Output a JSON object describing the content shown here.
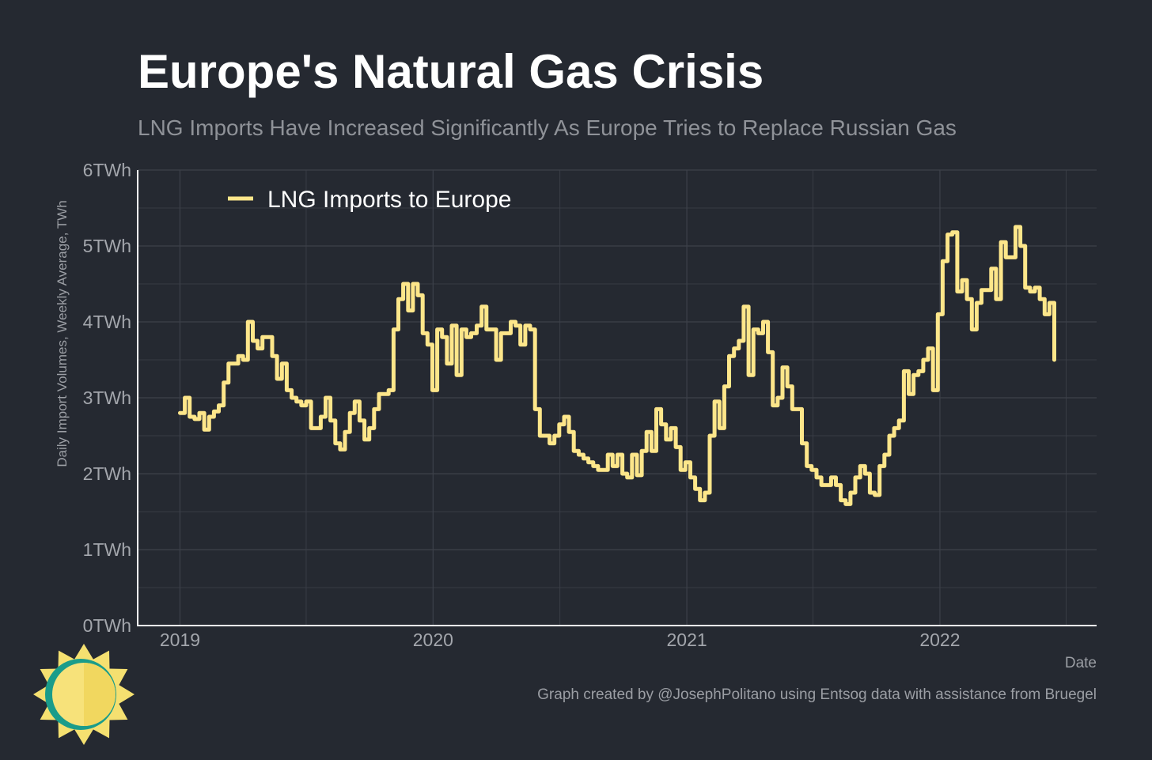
{
  "header": {
    "title": "Europe's Natural Gas Crisis",
    "subtitle": "LNG Imports Have Increased Significantly As Europe Tries to Replace Russian Gas"
  },
  "footer": {
    "caption": "Graph created by @JosephPolitano using Entsog data with assistance from Bruegel",
    "logo_icon": "sun-logo-icon"
  },
  "colors": {
    "background": "#252931",
    "line": "#fde68a",
    "grid": "#3d414a",
    "axis": "#ffffff"
  },
  "chart_data": {
    "type": "line",
    "title": "Europe's Natural Gas Crisis",
    "subtitle": "LNG Imports Have Increased Significantly As Europe Tries to Replace Russian Gas",
    "xlabel": "Date",
    "ylabel": "Daily Import Volumes, Weekly Average, TWh",
    "xlim": [
      "2018-11-01",
      "2022-08-15"
    ],
    "ylim": [
      0,
      6
    ],
    "x_ticks": [
      "2019",
      "2020",
      "2021",
      "2022"
    ],
    "y_ticks": [
      "0TWh",
      "1TWh",
      "2TWh",
      "3TWh",
      "4TWh",
      "5TWh",
      "6TWh"
    ],
    "grid": true,
    "legend_position": "top-left",
    "series": [
      {
        "name": "LNG Imports to Europe",
        "color": "#fde68a",
        "step": true,
        "points": [
          [
            "2019-01-01",
            2.8
          ],
          [
            "2019-01-08",
            3.0
          ],
          [
            "2019-01-15",
            2.75
          ],
          [
            "2019-01-22",
            2.72
          ],
          [
            "2019-01-29",
            2.8
          ],
          [
            "2019-02-05",
            2.58
          ],
          [
            "2019-02-12",
            2.75
          ],
          [
            "2019-02-19",
            2.82
          ],
          [
            "2019-02-26",
            2.9
          ],
          [
            "2019-03-05",
            3.2
          ],
          [
            "2019-03-12",
            3.45
          ],
          [
            "2019-03-19",
            3.45
          ],
          [
            "2019-03-26",
            3.55
          ],
          [
            "2019-04-02",
            3.5
          ],
          [
            "2019-04-09",
            4.0
          ],
          [
            "2019-04-16",
            3.75
          ],
          [
            "2019-04-23",
            3.65
          ],
          [
            "2019-04-30",
            3.8
          ],
          [
            "2019-05-07",
            3.8
          ],
          [
            "2019-05-14",
            3.55
          ],
          [
            "2019-05-21",
            3.25
          ],
          [
            "2019-05-28",
            3.45
          ],
          [
            "2019-06-04",
            3.1
          ],
          [
            "2019-06-11",
            3.0
          ],
          [
            "2019-06-18",
            2.95
          ],
          [
            "2019-06-25",
            2.9
          ],
          [
            "2019-07-02",
            2.95
          ],
          [
            "2019-07-09",
            2.6
          ],
          [
            "2019-07-16",
            2.6
          ],
          [
            "2019-07-23",
            2.75
          ],
          [
            "2019-07-30",
            3.0
          ],
          [
            "2019-08-06",
            2.7
          ],
          [
            "2019-08-13",
            2.4
          ],
          [
            "2019-08-20",
            2.32
          ],
          [
            "2019-08-27",
            2.55
          ],
          [
            "2019-09-03",
            2.8
          ],
          [
            "2019-09-10",
            2.95
          ],
          [
            "2019-09-17",
            2.7
          ],
          [
            "2019-09-24",
            2.45
          ],
          [
            "2019-10-01",
            2.6
          ],
          [
            "2019-10-08",
            2.85
          ],
          [
            "2019-10-15",
            3.05
          ],
          [
            "2019-10-22",
            3.05
          ],
          [
            "2019-10-29",
            3.1
          ],
          [
            "2019-11-05",
            3.9
          ],
          [
            "2019-11-12",
            4.3
          ],
          [
            "2019-11-19",
            4.5
          ],
          [
            "2019-11-26",
            4.15
          ],
          [
            "2019-12-03",
            4.5
          ],
          [
            "2019-12-10",
            4.35
          ],
          [
            "2019-12-17",
            3.85
          ],
          [
            "2019-12-24",
            3.7
          ],
          [
            "2019-12-31",
            3.1
          ],
          [
            "2020-01-07",
            3.9
          ],
          [
            "2020-01-14",
            3.8
          ],
          [
            "2020-01-21",
            3.45
          ],
          [
            "2020-01-28",
            3.95
          ],
          [
            "2020-02-04",
            3.3
          ],
          [
            "2020-02-11",
            3.9
          ],
          [
            "2020-02-18",
            3.8
          ],
          [
            "2020-02-25",
            3.85
          ],
          [
            "2020-03-04",
            3.95
          ],
          [
            "2020-03-11",
            4.2
          ],
          [
            "2020-03-18",
            3.9
          ],
          [
            "2020-03-25",
            3.9
          ],
          [
            "2020-04-01",
            3.5
          ],
          [
            "2020-04-08",
            3.85
          ],
          [
            "2020-04-15",
            3.85
          ],
          [
            "2020-04-22",
            4.0
          ],
          [
            "2020-04-29",
            3.95
          ],
          [
            "2020-05-06",
            3.7
          ],
          [
            "2020-05-13",
            3.95
          ],
          [
            "2020-05-20",
            3.9
          ],
          [
            "2020-05-27",
            2.85
          ],
          [
            "2020-06-03",
            2.5
          ],
          [
            "2020-06-10",
            2.5
          ],
          [
            "2020-06-17",
            2.4
          ],
          [
            "2020-06-24",
            2.5
          ],
          [
            "2020-07-01",
            2.65
          ],
          [
            "2020-07-08",
            2.75
          ],
          [
            "2020-07-15",
            2.55
          ],
          [
            "2020-07-22",
            2.3
          ],
          [
            "2020-07-29",
            2.25
          ],
          [
            "2020-08-05",
            2.2
          ],
          [
            "2020-08-12",
            2.15
          ],
          [
            "2020-08-19",
            2.1
          ],
          [
            "2020-08-26",
            2.05
          ],
          [
            "2020-09-02",
            2.05
          ],
          [
            "2020-09-09",
            2.25
          ],
          [
            "2020-09-16",
            2.1
          ],
          [
            "2020-09-23",
            2.25
          ],
          [
            "2020-09-30",
            2.0
          ],
          [
            "2020-10-07",
            1.95
          ],
          [
            "2020-10-14",
            2.25
          ],
          [
            "2020-10-21",
            1.98
          ],
          [
            "2020-10-28",
            2.3
          ],
          [
            "2020-11-04",
            2.55
          ],
          [
            "2020-11-11",
            2.3
          ],
          [
            "2020-11-18",
            2.85
          ],
          [
            "2020-11-25",
            2.65
          ],
          [
            "2020-12-02",
            2.45
          ],
          [
            "2020-12-09",
            2.6
          ],
          [
            "2020-12-16",
            2.35
          ],
          [
            "2020-12-23",
            2.05
          ],
          [
            "2020-12-30",
            2.15
          ],
          [
            "2021-01-06",
            1.95
          ],
          [
            "2021-01-13",
            1.8
          ],
          [
            "2021-01-20",
            1.65
          ],
          [
            "2021-01-27",
            1.75
          ],
          [
            "2021-02-03",
            2.5
          ],
          [
            "2021-02-10",
            2.95
          ],
          [
            "2021-02-17",
            2.6
          ],
          [
            "2021-02-24",
            3.15
          ],
          [
            "2021-03-03",
            3.55
          ],
          [
            "2021-03-10",
            3.65
          ],
          [
            "2021-03-17",
            3.75
          ],
          [
            "2021-03-24",
            4.2
          ],
          [
            "2021-03-31",
            3.3
          ],
          [
            "2021-04-07",
            3.9
          ],
          [
            "2021-04-14",
            3.85
          ],
          [
            "2021-04-21",
            4.0
          ],
          [
            "2021-04-28",
            3.6
          ],
          [
            "2021-05-05",
            2.9
          ],
          [
            "2021-05-12",
            3.0
          ],
          [
            "2021-05-19",
            3.4
          ],
          [
            "2021-05-26",
            3.15
          ],
          [
            "2021-06-02",
            2.85
          ],
          [
            "2021-06-09",
            2.85
          ],
          [
            "2021-06-16",
            2.4
          ],
          [
            "2021-06-23",
            2.1
          ],
          [
            "2021-06-30",
            2.05
          ],
          [
            "2021-07-07",
            1.95
          ],
          [
            "2021-07-14",
            1.85
          ],
          [
            "2021-07-21",
            1.85
          ],
          [
            "2021-07-28",
            1.95
          ],
          [
            "2021-08-04",
            1.85
          ],
          [
            "2021-08-11",
            1.65
          ],
          [
            "2021-08-18",
            1.6
          ],
          [
            "2021-08-25",
            1.75
          ],
          [
            "2021-09-01",
            1.95
          ],
          [
            "2021-09-08",
            2.1
          ],
          [
            "2021-09-15",
            2.0
          ],
          [
            "2021-09-22",
            1.75
          ],
          [
            "2021-09-29",
            1.72
          ],
          [
            "2021-10-06",
            2.1
          ],
          [
            "2021-10-13",
            2.25
          ],
          [
            "2021-10-20",
            2.5
          ],
          [
            "2021-10-27",
            2.6
          ],
          [
            "2021-11-03",
            2.7
          ],
          [
            "2021-11-10",
            3.35
          ],
          [
            "2021-11-17",
            3.05
          ],
          [
            "2021-11-24",
            3.3
          ],
          [
            "2021-12-01",
            3.35
          ],
          [
            "2021-12-08",
            3.5
          ],
          [
            "2021-12-15",
            3.65
          ],
          [
            "2021-12-22",
            3.1
          ],
          [
            "2021-12-29",
            4.1
          ],
          [
            "2022-01-05",
            4.8
          ],
          [
            "2022-01-12",
            5.15
          ],
          [
            "2022-01-19",
            5.18
          ],
          [
            "2022-01-26",
            4.4
          ],
          [
            "2022-02-02",
            4.55
          ],
          [
            "2022-02-09",
            4.3
          ],
          [
            "2022-02-16",
            3.9
          ],
          [
            "2022-02-23",
            4.25
          ],
          [
            "2022-03-02",
            4.42
          ],
          [
            "2022-03-09",
            4.42
          ],
          [
            "2022-03-16",
            4.7
          ],
          [
            "2022-03-23",
            4.3
          ],
          [
            "2022-03-30",
            5.05
          ],
          [
            "2022-04-06",
            4.85
          ],
          [
            "2022-04-13",
            4.85
          ],
          [
            "2022-04-20",
            5.25
          ],
          [
            "2022-04-27",
            5.0
          ],
          [
            "2022-05-04",
            4.45
          ],
          [
            "2022-05-11",
            4.4
          ],
          [
            "2022-05-18",
            4.45
          ],
          [
            "2022-05-25",
            4.3
          ],
          [
            "2022-06-01",
            4.1
          ],
          [
            "2022-06-08",
            4.25
          ],
          [
            "2022-06-15",
            3.5
          ]
        ]
      }
    ]
  }
}
